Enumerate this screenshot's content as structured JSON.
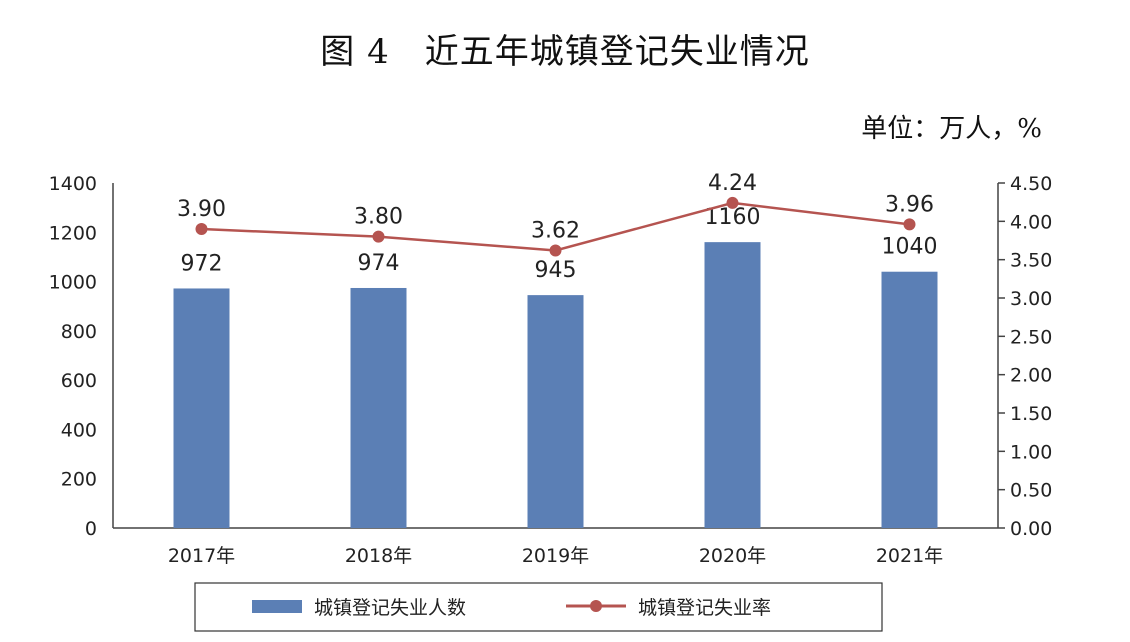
{
  "title": "图 4　近五年城镇登记失业情况",
  "unit": "单位：万人，%",
  "chart_data": {
    "type": "bar+line",
    "categories": [
      "2017年",
      "2018年",
      "2019年",
      "2020年",
      "2021年"
    ],
    "series": [
      {
        "name": "城镇登记失业人数",
        "type": "bar",
        "axis": "left",
        "values": [
          972,
          974,
          945,
          1160,
          1040
        ],
        "labels": [
          "972",
          "974",
          "945",
          "1160",
          "1040"
        ],
        "color": "#5b7fb5"
      },
      {
        "name": "城镇登记失业率",
        "type": "line",
        "axis": "right",
        "values": [
          3.9,
          3.8,
          3.62,
          4.24,
          3.96
        ],
        "labels": [
          "3.90",
          "3.80",
          "3.62",
          "4.24",
          "3.96"
        ],
        "color": "#b55450"
      }
    ],
    "left_axis": {
      "min": 0,
      "max": 1400,
      "ticks": [
        "0",
        "200",
        "400",
        "600",
        "800",
        "1000",
        "1200",
        "1400"
      ]
    },
    "right_axis": {
      "min": 0,
      "max": 4.5,
      "ticks": [
        "0.00",
        "0.50",
        "1.00",
        "1.50",
        "2.00",
        "2.50",
        "3.00",
        "3.50",
        "4.00",
        "4.50"
      ]
    },
    "legend": "bottom"
  }
}
